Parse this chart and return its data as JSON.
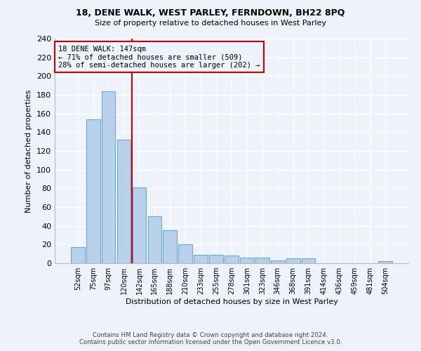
{
  "title1": "18, DENE WALK, WEST PARLEY, FERNDOWN, BH22 8PQ",
  "title2": "Size of property relative to detached houses in West Parley",
  "xlabel": "Distribution of detached houses by size in West Parley",
  "ylabel": "Number of detached properties",
  "categories": [
    "52sqm",
    "75sqm",
    "97sqm",
    "120sqm",
    "142sqm",
    "165sqm",
    "188sqm",
    "210sqm",
    "233sqm",
    "255sqm",
    "278sqm",
    "301sqm",
    "323sqm",
    "346sqm",
    "368sqm",
    "391sqm",
    "414sqm",
    "436sqm",
    "459sqm",
    "481sqm",
    "504sqm"
  ],
  "values": [
    17,
    154,
    184,
    132,
    81,
    50,
    35,
    20,
    9,
    9,
    8,
    6,
    6,
    3,
    5,
    5,
    0,
    0,
    0,
    0,
    2
  ],
  "bar_color": "#b8d0ea",
  "bar_edge_color": "#6aaad4",
  "annotation_line1": "18 DENE WALK: 147sqm",
  "annotation_line2": "← 71% of detached houses are smaller (509)",
  "annotation_line3": "28% of semi-detached houses are larger (202) →",
  "vline_color": "#cc0000",
  "box_edge_color": "#cc0000",
  "footnote1": "Contains HM Land Registry data © Crown copyright and database right 2024.",
  "footnote2": "Contains public sector information licensed under the Open Government Licence v3.0.",
  "ylim": [
    0,
    240
  ],
  "yticks": [
    0,
    20,
    40,
    60,
    80,
    100,
    120,
    140,
    160,
    180,
    200,
    220,
    240
  ],
  "background_color": "#eef2fb",
  "grid_color": "#ffffff",
  "vline_x": 3.5
}
